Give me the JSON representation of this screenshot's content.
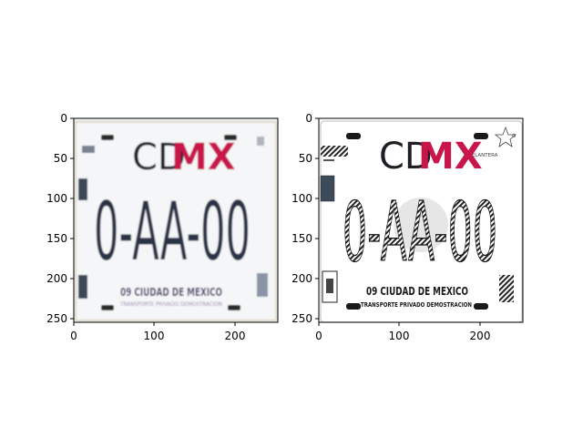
{
  "figure": {
    "panels": [
      {
        "name": "low-quality-plate",
        "xticks": [
          "0",
          "100",
          "200"
        ],
        "yticks": [
          "0",
          "50",
          "100",
          "150",
          "200",
          "250"
        ],
        "plate": {
          "brand_cd": "CD",
          "brand_mx": "MX",
          "plate_number": "0-AA-00",
          "city_line": "09 CIUDAD DE MEXICO",
          "bottom_line": "TRANSPORTE PRIVADO DEMOSTRACION"
        }
      },
      {
        "name": "clean-plate",
        "xticks": [
          "0",
          "100",
          "200"
        ],
        "yticks": [
          "0",
          "50",
          "100",
          "150",
          "200",
          "250"
        ],
        "plate": {
          "brand_cd": "CD",
          "brand_mx": "MX",
          "plate_number": "0-AA-00",
          "city_line": "09 CIUDAD DE MEXICO",
          "bottom_line": "TRANSPORTE PRIVADO DEMOSTRACION",
          "position_label": "DELANTERA"
        }
      }
    ]
  },
  "colors": {
    "brand_black": "#1e1e24",
    "brand_magenta": "#c8164b",
    "plate_bg": "#ffffff",
    "blurred_bg": "#eef1f3"
  }
}
